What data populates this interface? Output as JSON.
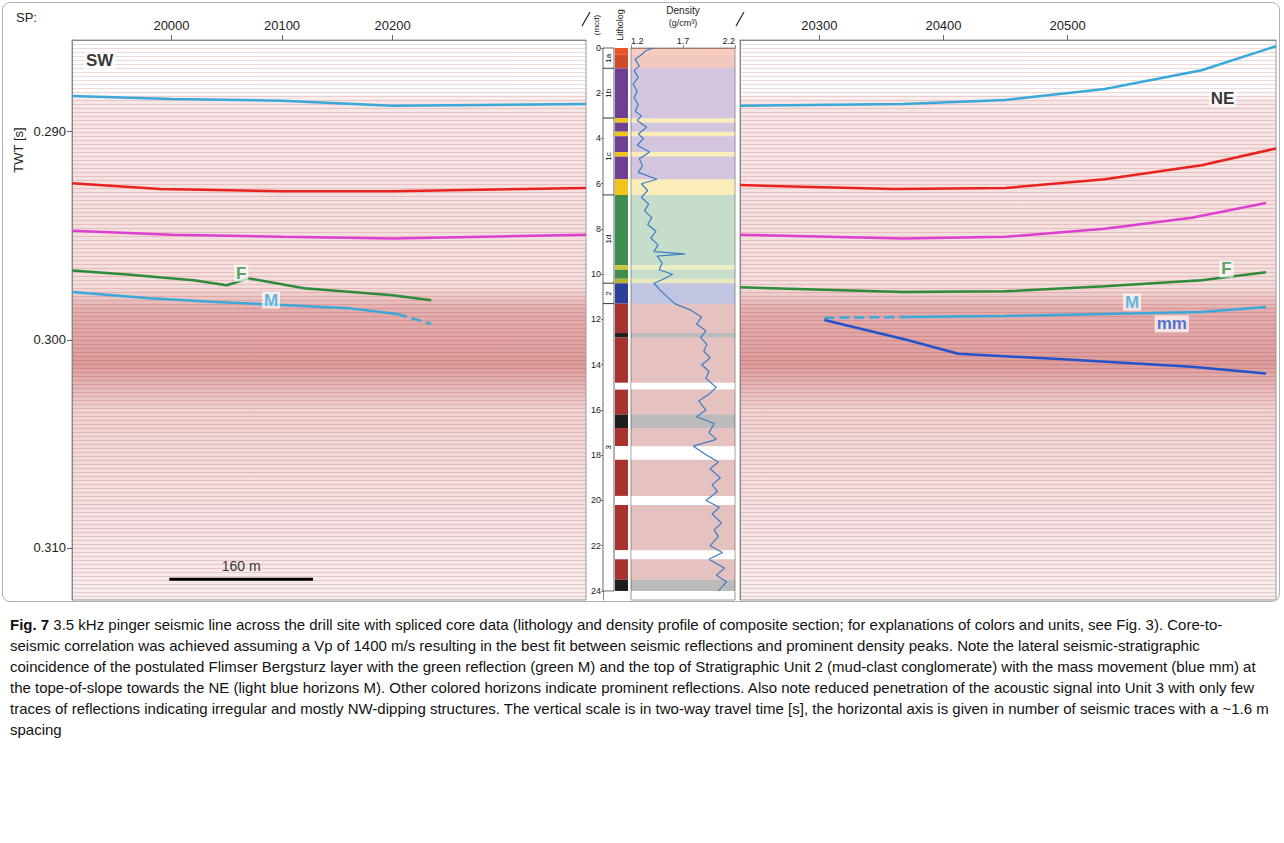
{
  "chart_data": [
    {
      "type": "line",
      "x_label": "SP:",
      "y_label": "TWT [s]",
      "xlim": [
        19910,
        20375
      ],
      "xticks": [
        20000,
        20100,
        20200
      ],
      "ylim": [
        0.2856,
        0.3125
      ],
      "yticks": [
        {
          "value": 0.29,
          "label": "0.290"
        },
        {
          "value": 0.3,
          "label": "0.300"
        },
        {
          "value": 0.31,
          "label": "0.310"
        }
      ],
      "series": [
        {
          "color": "#3aa8d8",
          "line_style": "solid",
          "values": [
            [
              19910,
              0.28829
            ],
            [
              20000,
              0.28843
            ],
            [
              20100,
              0.28852
            ],
            [
              20165,
              0.28867
            ],
            [
              20200,
              0.28876
            ],
            [
              20375,
              0.28867
            ]
          ]
        },
        {
          "color": "#e8221f",
          "line_style": "solid",
          "values": [
            [
              19910,
              0.29248
            ],
            [
              19990,
              0.29276
            ],
            [
              20100,
              0.29286
            ],
            [
              20200,
              0.29286
            ],
            [
              20375,
              0.29271
            ]
          ]
        },
        {
          "color": "#dd3fcf",
          "line_style": "solid",
          "values": [
            [
              19910,
              0.29476
            ],
            [
              20000,
              0.29495
            ],
            [
              20100,
              0.29505
            ],
            [
              20200,
              0.29514
            ],
            [
              20375,
              0.29495
            ]
          ]
        },
        {
          "color": "#2e8b3a",
          "line_style": "solid",
          "values": [
            [
              19910,
              0.29667
            ],
            [
              19960,
              0.29686
            ],
            [
              20020,
              0.29714
            ],
            [
              20050,
              0.29738
            ],
            [
              20070,
              0.29705
            ],
            [
              20120,
              0.29752
            ],
            [
              20200,
              0.29786
            ],
            [
              20235,
              0.2981
            ]
          ]
        },
        {
          "color": "#3aa8d8",
          "line_style": "solid",
          "values": [
            [
              19910,
              0.29771
            ],
            [
              19980,
              0.298
            ],
            [
              20040,
              0.29819
            ],
            [
              20100,
              0.29833
            ],
            [
              20160,
              0.29848
            ],
            [
              20204,
              0.29876
            ]
          ]
        },
        {
          "color": "#3aa8d8",
          "line_style": "dashed",
          "values": [
            [
              20204,
              0.29876
            ],
            [
              20235,
              0.29924
            ]
          ]
        }
      ],
      "annotations": [
        {
          "text": "SW",
          "x": 19935,
          "y": 0.2866,
          "color": "#000000"
        },
        {
          "text": "F",
          "x": 20063,
          "y": 0.2968,
          "color": "#2e8b3a"
        },
        {
          "text": "M",
          "x": 20090,
          "y": 0.2981,
          "color": "#3aa8d8"
        }
      ],
      "scale_bar": {
        "label": "160 m",
        "from": 19998,
        "to": 20128,
        "y": 0.3115
      }
    },
    {
      "type": "line",
      "x_label": "Density",
      "x_unit": "(g/cm³)",
      "y_label": "(mcd)",
      "lithology_label": "Litholog",
      "xlim": [
        1.2,
        2.2
      ],
      "xticks": [
        1.2,
        1.7,
        2.2
      ],
      "ylim": [
        0,
        24.4
      ],
      "yticks": [
        0,
        2,
        4,
        6,
        8,
        10,
        12,
        14,
        16,
        18,
        20,
        22,
        24
      ],
      "units": [
        {
          "label": "1a",
          "top": 0,
          "bottom": 0.9
        },
        {
          "label": "1b",
          "top": 0.9,
          "bottom": 3.1
        },
        {
          "label": "1c",
          "top": 3.1,
          "bottom": 6.5
        },
        {
          "label": "1d",
          "top": 6.5,
          "bottom": 10.4
        },
        {
          "label": "2",
          "top": 10.4,
          "bottom": 11.3
        },
        {
          "label": "3",
          "top": 11.3,
          "bottom": 24
        }
      ],
      "lithology": [
        {
          "top": 0,
          "bottom": 0.3,
          "color": "#e8562a"
        },
        {
          "top": 0.3,
          "bottom": 0.9,
          "color": "#d04a2c"
        },
        {
          "top": 0.9,
          "bottom": 3.1,
          "color": "#6f3f91"
        },
        {
          "top": 3.1,
          "bottom": 3.3,
          "color": "#f0c419"
        },
        {
          "top": 3.3,
          "bottom": 3.7,
          "color": "#6f3f91"
        },
        {
          "top": 3.7,
          "bottom": 3.9,
          "color": "#f0c419"
        },
        {
          "top": 3.9,
          "bottom": 4.6,
          "color": "#6f3f91"
        },
        {
          "top": 4.6,
          "bottom": 4.8,
          "color": "#f0c419"
        },
        {
          "top": 4.8,
          "bottom": 5.8,
          "color": "#6f3f91"
        },
        {
          "top": 5.8,
          "bottom": 6.5,
          "color": "#f0c419"
        },
        {
          "top": 6.5,
          "bottom": 9.6,
          "color": "#3e8e4e"
        },
        {
          "top": 9.6,
          "bottom": 9.8,
          "color": "#c8c83a"
        },
        {
          "top": 9.8,
          "bottom": 10.2,
          "color": "#3e8e4e"
        },
        {
          "top": 10.2,
          "bottom": 10.4,
          "color": "#b7b42a"
        },
        {
          "top": 10.4,
          "bottom": 11.3,
          "color": "#2d3f9a"
        },
        {
          "top": 11.3,
          "bottom": 12.6,
          "color": "#a8322d"
        },
        {
          "top": 12.6,
          "bottom": 12.8,
          "color": "#1e1e1e"
        },
        {
          "top": 12.8,
          "bottom": 14.8,
          "color": "#a8322d"
        },
        {
          "top": 14.8,
          "bottom": 15.1,
          "color": "#ffffff"
        },
        {
          "top": 15.1,
          "bottom": 16.2,
          "color": "#a8322d"
        },
        {
          "top": 16.2,
          "bottom": 16.8,
          "color": "#1e1e1e"
        },
        {
          "top": 16.8,
          "bottom": 17.6,
          "color": "#a8322d"
        },
        {
          "top": 17.6,
          "bottom": 18.2,
          "color": "#ffffff"
        },
        {
          "top": 18.2,
          "bottom": 19.8,
          "color": "#a8322d"
        },
        {
          "top": 19.8,
          "bottom": 20.2,
          "color": "#ffffff"
        },
        {
          "top": 20.2,
          "bottom": 22.2,
          "color": "#a8322d"
        },
        {
          "top": 22.2,
          "bottom": 22.6,
          "color": "#ffffff"
        },
        {
          "top": 22.6,
          "bottom": 23.5,
          "color": "#a8322d"
        },
        {
          "top": 23.5,
          "bottom": 24,
          "color": "#1e1e1e"
        }
      ],
      "series": [
        {
          "color": "#3b7dc4",
          "line_style": "solid",
          "values": [
            [
              1.42,
              0
            ],
            [
              1.35,
              0.1
            ],
            [
              1.3,
              0.3
            ],
            [
              1.24,
              0.5
            ],
            [
              1.28,
              0.8
            ],
            [
              1.23,
              1.0
            ],
            [
              1.27,
              1.3
            ],
            [
              1.22,
              1.6
            ],
            [
              1.26,
              1.9
            ],
            [
              1.23,
              2.2
            ],
            [
              1.27,
              2.5
            ],
            [
              1.24,
              2.8
            ],
            [
              1.3,
              3.0
            ],
            [
              1.26,
              3.2
            ],
            [
              1.35,
              3.5
            ],
            [
              1.27,
              3.8
            ],
            [
              1.32,
              4.0
            ],
            [
              1.26,
              4.3
            ],
            [
              1.38,
              4.6
            ],
            [
              1.28,
              4.9
            ],
            [
              1.31,
              5.2
            ],
            [
              1.27,
              5.5
            ],
            [
              1.45,
              5.8
            ],
            [
              1.3,
              6.0
            ],
            [
              1.36,
              6.3
            ],
            [
              1.3,
              6.6
            ],
            [
              1.37,
              6.9
            ],
            [
              1.33,
              7.2
            ],
            [
              1.4,
              7.5
            ],
            [
              1.36,
              7.8
            ],
            [
              1.44,
              8.1
            ],
            [
              1.39,
              8.4
            ],
            [
              1.46,
              8.7
            ],
            [
              1.42,
              9.0
            ],
            [
              1.72,
              9.1
            ],
            [
              1.45,
              9.2
            ],
            [
              1.5,
              9.5
            ],
            [
              1.47,
              9.8
            ],
            [
              1.6,
              10.0
            ],
            [
              1.52,
              10.2
            ],
            [
              1.42,
              10.4
            ],
            [
              1.48,
              10.7
            ],
            [
              1.55,
              11.0
            ],
            [
              1.62,
              11.3
            ],
            [
              1.78,
              11.6
            ],
            [
              1.88,
              11.9
            ],
            [
              1.83,
              12.2
            ],
            [
              1.92,
              12.5
            ],
            [
              1.87,
              12.8
            ],
            [
              1.93,
              13.1
            ],
            [
              1.9,
              13.4
            ],
            [
              1.96,
              13.7
            ],
            [
              1.88,
              14.0
            ],
            [
              1.95,
              14.3
            ],
            [
              1.92,
              14.6
            ],
            [
              2.02,
              15.0
            ],
            [
              1.95,
              15.3
            ],
            [
              1.85,
              15.6
            ],
            [
              1.92,
              16.0
            ],
            [
              1.83,
              16.3
            ],
            [
              2.0,
              16.6
            ],
            [
              1.95,
              17.0
            ],
            [
              2.02,
              17.3
            ],
            [
              1.8,
              17.6
            ],
            [
              1.93,
              18.0
            ],
            [
              2.04,
              18.3
            ],
            [
              1.96,
              18.6
            ],
            [
              2.06,
              19.0
            ],
            [
              1.98,
              19.3
            ],
            [
              2.03,
              19.6
            ],
            [
              1.92,
              20.0
            ],
            [
              2.05,
              20.3
            ],
            [
              1.98,
              20.6
            ],
            [
              2.07,
              21.0
            ],
            [
              2.0,
              21.3
            ],
            [
              2.04,
              21.6
            ],
            [
              1.96,
              22.0
            ],
            [
              2.08,
              22.3
            ],
            [
              1.95,
              22.6
            ],
            [
              2.1,
              23.0
            ],
            [
              2.02,
              23.3
            ],
            [
              2.12,
              23.6
            ],
            [
              2.04,
              24.0
            ]
          ]
        }
      ]
    },
    {
      "type": "line",
      "tick_labels": "x",
      "xlim": [
        20236,
        20668
      ],
      "xticks": [
        20300,
        20400,
        20500
      ],
      "ylim": [
        0.2856,
        0.3125
      ],
      "series": [
        {
          "color": "#3aa8d8",
          "line_style": "solid",
          "values": [
            [
              20236,
              0.28876
            ],
            [
              20368,
              0.28867
            ],
            [
              20450,
              0.28848
            ],
            [
              20530,
              0.28795
            ],
            [
              20608,
              0.28705
            ],
            [
              20668,
              0.2859
            ]
          ]
        },
        {
          "color": "#e8221f",
          "line_style": "solid",
          "values": [
            [
              20236,
              0.29257
            ],
            [
              20360,
              0.29276
            ],
            [
              20450,
              0.29271
            ],
            [
              20530,
              0.29229
            ],
            [
              20608,
              0.29162
            ],
            [
              20668,
              0.29081
            ]
          ]
        },
        {
          "color": "#dd3fcf",
          "line_style": "solid",
          "values": [
            [
              20236,
              0.29495
            ],
            [
              20368,
              0.29514
            ],
            [
              20450,
              0.29505
            ],
            [
              20530,
              0.29467
            ],
            [
              20600,
              0.29414
            ],
            [
              20660,
              0.29343
            ]
          ]
        },
        {
          "color": "#2e8b3a",
          "line_style": "solid",
          "values": [
            [
              20236,
              0.29748
            ],
            [
              20368,
              0.29771
            ],
            [
              20450,
              0.29767
            ],
            [
              20530,
              0.29743
            ],
            [
              20608,
              0.29714
            ],
            [
              20660,
              0.29676
            ]
          ]
        },
        {
          "color": "#3aa8d8",
          "line_style": "dashed",
          "values": [
            [
              20304,
              0.29895
            ],
            [
              20368,
              0.2989
            ]
          ]
        },
        {
          "color": "#3aa8d8",
          "line_style": "solid",
          "values": [
            [
              20368,
              0.2989
            ],
            [
              20450,
              0.29886
            ],
            [
              20530,
              0.29876
            ],
            [
              20608,
              0.29867
            ],
            [
              20660,
              0.29843
            ]
          ]
        },
        {
          "color": "#2453c9",
          "line_style": "solid",
          "values": [
            [
              20304,
              0.29905
            ],
            [
              20370,
              0.3
            ],
            [
              20412,
              0.30067
            ],
            [
              20500,
              0.30095
            ],
            [
              20600,
              0.30129
            ],
            [
              20660,
              0.30162
            ]
          ]
        }
      ],
      "annotations": [
        {
          "text": "NE",
          "x": 20625,
          "y": 0.2884,
          "color": "#000000"
        },
        {
          "text": "F",
          "x": 20628,
          "y": 0.2966,
          "color": "#2e8b3a"
        },
        {
          "text": "M",
          "x": 20552,
          "y": 0.29819,
          "color": "#3aa8d8"
        },
        {
          "text": "mm",
          "x": 20584,
          "y": 0.29924,
          "color": "#2453c9"
        }
      ]
    }
  ],
  "caption": {
    "label": "Fig. 7",
    "text": "3.5 kHz pinger seismic line across the drill site with spliced core data (lithology and density profile of composite section; for explanations of colors and units, see Fig. 3). Core-to-seismic correlation was achieved assuming a Vp of 1400 m/s resulting in the best fit between seismic reflections and prominent density peaks. Note the lateral seismic-stratigraphic coincidence of the postulated Flimser Bergsturz layer with the green reflection (green M) and the top of Stratigraphic Unit 2 (mud-clast conglomerate) with the mass movement (blue mm) at the tope-of-slope towards the NE (light blue horizons M). Other colored horizons indicate prominent reflections. Also note reduced penetration of the acoustic signal into Unit 3 with only few traces of reflections indicating irregular and mostly NW-dipping structures. The vertical scale is in two-way travel time [s], the horizontal axis is given in number of seismic traces with a ~1.6 m spacing"
  }
}
